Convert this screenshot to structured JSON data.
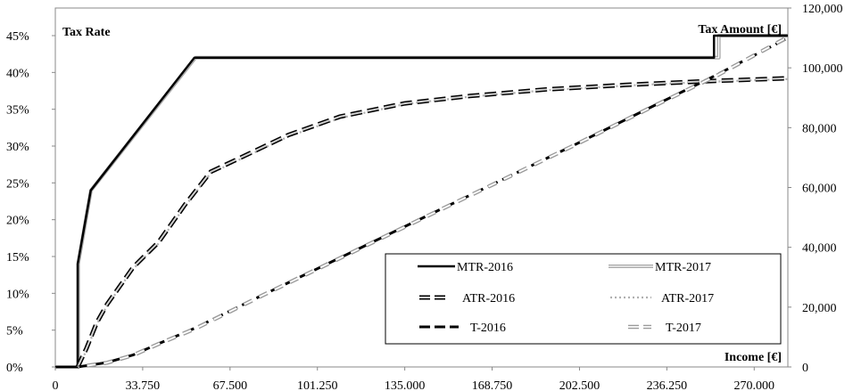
{
  "chart_data": {
    "type": "line",
    "title": "",
    "xlabel": "Income [€]",
    "ylabel_left": "Tax Rate",
    "ylabel_right": "Tax Amount [€]",
    "x_ticks": [
      "0",
      "33.750",
      "67.500",
      "101.250",
      "135.000",
      "168.750",
      "202.500",
      "236.250",
      "270.000"
    ],
    "xlim": [
      0,
      283000
    ],
    "ylim_left": [
      0,
      0.4875
    ],
    "ylim_right": [
      0,
      120000
    ],
    "y_left_ticks": [
      "0%",
      "5%",
      "10%",
      "15%",
      "20%",
      "25%",
      "30%",
      "35%",
      "40%",
      "45%"
    ],
    "y_right_ticks": [
      "0",
      "20,000",
      "40,000",
      "60,000",
      "80,000",
      "100,000",
      "120,000"
    ],
    "grid": false,
    "legend_position": "bottom-right",
    "series": [
      {
        "name": "MTR-2016",
        "axis": "left",
        "style": "solid-black",
        "color": "#000000",
        "x": [
          0,
          8650,
          8651,
          13670,
          53665,
          54000,
          254446,
          254447,
          283000
        ],
        "y": [
          0,
          0,
          0.14,
          0.2397,
          0.4197,
          0.42,
          0.42,
          0.45,
          0.45
        ]
      },
      {
        "name": "MTR-2017",
        "axis": "left",
        "style": "solid-gray-double",
        "color": "#b8b8b8",
        "x": [
          0,
          8820,
          8821,
          13770,
          54058,
          54300,
          256303,
          256304,
          283000
        ],
        "y": [
          0,
          0,
          0.14,
          0.2397,
          0.4197,
          0.42,
          0.42,
          0.45,
          0.45
        ]
      },
      {
        "name": "ATR-2016",
        "axis": "left",
        "style": "dashed-black-outlined",
        "color": "#000000",
        "x": [
          8650,
          12000,
          16000,
          20000,
          25000,
          30000,
          40000,
          50000,
          60000,
          75000,
          90000,
          110000,
          135000,
          160000,
          190000,
          220000,
          250000,
          283000
        ],
        "y": [
          0,
          0.025,
          0.06,
          0.085,
          0.11,
          0.135,
          0.17,
          0.22,
          0.265,
          0.29,
          0.315,
          0.34,
          0.358,
          0.368,
          0.377,
          0.383,
          0.388,
          0.392
        ]
      },
      {
        "name": "ATR-2017",
        "axis": "left",
        "style": "dotted-gray",
        "color": "#b8b8b8",
        "x": [
          8820,
          12000,
          16000,
          20000,
          25000,
          30000,
          40000,
          50000,
          60000,
          75000,
          90000,
          110000,
          135000,
          160000,
          190000,
          220000,
          250000,
          283000
        ],
        "y": [
          0,
          0.022,
          0.058,
          0.083,
          0.108,
          0.133,
          0.168,
          0.218,
          0.263,
          0.288,
          0.313,
          0.338,
          0.357,
          0.367,
          0.376,
          0.382,
          0.387,
          0.391
        ]
      },
      {
        "name": "T-2016",
        "axis": "right",
        "style": "dashed-black",
        "color": "#000000",
        "x": [
          8650,
          20000,
          30000,
          40000,
          54000,
          80000,
          110000,
          140000,
          170000,
          200000,
          230000,
          254000,
          283000
        ],
        "y": [
          0,
          1500,
          4000,
          7800,
          13000,
          24000,
          36500,
          49000,
          61500,
          74000,
          86800,
          97000,
          110000
        ]
      },
      {
        "name": "T-2017",
        "axis": "right",
        "style": "dashed-gray-outlined",
        "color": "#b8b8b8",
        "x": [
          8820,
          20000,
          30000,
          40000,
          54300,
          80000,
          110000,
          140000,
          170000,
          200000,
          230000,
          256000,
          283000
        ],
        "y": [
          0,
          1400,
          3900,
          7700,
          12900,
          23900,
          36400,
          48900,
          61400,
          73900,
          86700,
          97600,
          110300
        ]
      }
    ]
  }
}
